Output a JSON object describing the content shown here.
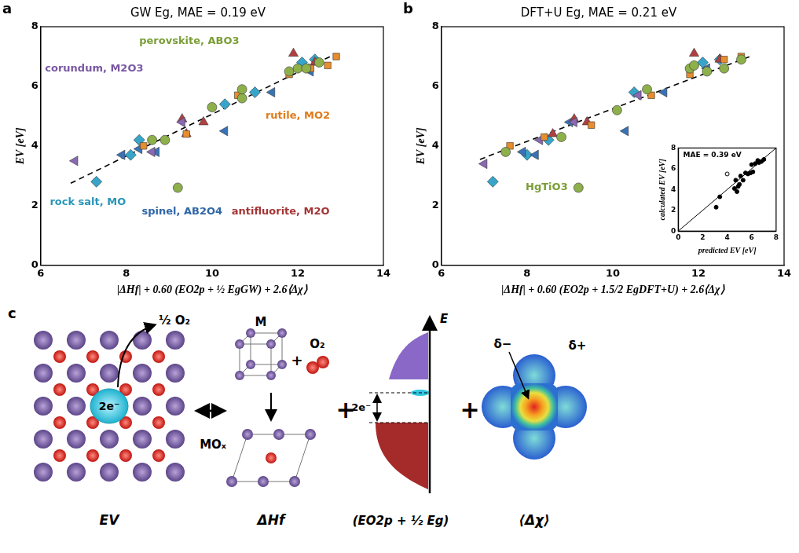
{
  "chart_data": [
    {
      "letter": "a",
      "type": "scatter",
      "title": "GW Eg, MAE = 0.19 eV",
      "x_label": "|ΔHf| + 0.60 (EO2p + ½ EgGW) + 2.6⟨Δχ⟩",
      "y_label": "EV [eV]",
      "xlim": [
        6,
        14
      ],
      "xticks": [
        6,
        8,
        10,
        12,
        14
      ],
      "ylim": [
        0,
        8
      ],
      "yticks": [
        0,
        2,
        4,
        6,
        8
      ],
      "grid": false,
      "legend": false,
      "series": [
        {
          "color": "#8db04a",
          "marker": "circle",
          "x": [
            8.6,
            8.9,
            9.2,
            10.0,
            10.7,
            10.7,
            11.8,
            12.0,
            12.2,
            12.5
          ],
          "y": [
            4.2,
            4.2,
            2.6,
            5.3,
            5.6,
            5.9,
            6.5,
            6.6,
            6.6,
            6.8
          ]
        },
        {
          "color": "#e88d2d",
          "marker": "square",
          "x": [
            8.4,
            9.4,
            10.6,
            11.8,
            12.3,
            12.7,
            12.9
          ],
          "y": [
            4.0,
            4.4,
            5.7,
            6.4,
            6.6,
            6.7,
            7.0
          ]
        },
        {
          "color": "#8a68b3",
          "marker": "triangle-left",
          "x": [
            6.8,
            8.6,
            9.3,
            12.2
          ],
          "y": [
            3.5,
            3.8,
            4.8,
            6.6
          ]
        },
        {
          "color": "#b23f3f",
          "marker": "triangle-up",
          "x": [
            9.3,
            9.4,
            9.8,
            11.9,
            12.4
          ],
          "y": [
            4.9,
            4.4,
            4.8,
            7.1,
            6.8
          ]
        },
        {
          "color": "#3873b8",
          "marker": "triangle-left",
          "x": [
            7.9,
            8.3,
            8.7,
            10.3,
            11.4,
            12.3
          ],
          "y": [
            3.7,
            3.9,
            3.8,
            4.5,
            5.8,
            6.5
          ]
        },
        {
          "color": "#36a5c9",
          "marker": "diamond",
          "x": [
            7.3,
            8.1,
            8.3,
            10.3,
            11.0,
            12.1,
            12.4
          ],
          "y": [
            2.8,
            3.7,
            4.2,
            5.4,
            5.8,
            6.8,
            6.9
          ]
        },
        {
          "type": "line",
          "line_style": "dashed",
          "color": "#000000",
          "x": [
            6.7,
            12.9
          ],
          "y": [
            2.75,
            7.1
          ]
        }
      ],
      "annotations": [
        {
          "text": "perovskite, ABO3",
          "color": "#7a9e36"
        },
        {
          "text": "rutile, MO2",
          "color": "#e07b1a"
        },
        {
          "text": "corundum, M2O3",
          "color": "#7a58a3"
        },
        {
          "text": "antifluorite, M2O",
          "color": "#a33535"
        },
        {
          "text": "spinel, AB2O4",
          "color": "#2f66a8"
        },
        {
          "text": "rock salt, MO",
          "color": "#2a95b8"
        }
      ]
    },
    {
      "letter": "b",
      "type": "scatter",
      "title": "DFT+U Eg, MAE = 0.21 eV",
      "x_label": "|ΔHf| + 0.60 (EO2p + 1.5/2 EgDFT+U) + 2.6⟨Δχ⟩",
      "y_label": "EV [eV]",
      "xlim": [
        6,
        14
      ],
      "xticks": [
        6,
        8,
        10,
        12,
        14
      ],
      "ylim": [
        0,
        8
      ],
      "yticks": [
        0,
        2,
        4,
        6,
        8
      ],
      "grid": false,
      "legend": false,
      "series": [
        {
          "color": "#8db04a",
          "marker": "circle",
          "x": [
            7.5,
            8.8,
            9.2,
            10.1,
            10.8,
            11.8,
            11.9,
            12.2,
            12.6,
            13.0
          ],
          "y": [
            3.8,
            4.3,
            2.6,
            5.2,
            5.9,
            6.6,
            6.7,
            6.5,
            6.6,
            6.9
          ]
        },
        {
          "color": "#e88d2d",
          "marker": "square",
          "x": [
            7.6,
            8.4,
            9.5,
            10.9,
            11.8,
            12.6,
            13.0
          ],
          "y": [
            4.0,
            4.3,
            4.7,
            5.7,
            6.4,
            6.9,
            7.0
          ]
        },
        {
          "color": "#8a68b3",
          "marker": "triangle-left",
          "x": [
            7.0,
            8.3,
            9.1,
            10.6
          ],
          "y": [
            3.4,
            4.2,
            4.8,
            5.7
          ]
        },
        {
          "color": "#b23f3f",
          "marker": "triangle-up",
          "x": [
            8.6,
            9.1,
            9.4,
            11.9,
            12.5
          ],
          "y": [
            4.4,
            4.9,
            4.8,
            7.1,
            6.9
          ]
        },
        {
          "color": "#3873b8",
          "marker": "triangle-left",
          "x": [
            7.9,
            8.2,
            9.0,
            10.3,
            11.2,
            12.2
          ],
          "y": [
            3.8,
            3.7,
            4.8,
            4.5,
            5.8,
            6.6
          ]
        },
        {
          "color": "#36a5c9",
          "marker": "diamond",
          "x": [
            7.2,
            8.0,
            8.5,
            10.5,
            12.1,
            12.5
          ],
          "y": [
            2.8,
            3.7,
            4.2,
            5.8,
            6.8,
            6.9
          ]
        },
        {
          "type": "line",
          "line_style": "dashed",
          "color": "#000000",
          "x": [
            6.9,
            13.2
          ],
          "y": [
            3.55,
            7.0
          ]
        }
      ],
      "annotations": [
        {
          "text": "HgTiO3",
          "color": "#7a9e36"
        }
      ]
    },
    {
      "type": "scatter",
      "x_label": "predicted EV [eV]",
      "y_label": "calculated EV [eV]",
      "xlim": [
        0,
        8
      ],
      "xticks": [
        0,
        2,
        4,
        6,
        8
      ],
      "ylim": [
        0,
        8
      ],
      "yticks": [
        0,
        2,
        4,
        6,
        8
      ],
      "grid": false,
      "legend": false,
      "series": [
        {
          "color": "#000000",
          "marker": "circle",
          "x": [
            3.1,
            3.4,
            4.6,
            4.7,
            4.8,
            4.9,
            5.0,
            5.1,
            5.3,
            5.5,
            5.7,
            5.9,
            6.0,
            6.1,
            6.3,
            6.5,
            6.6,
            6.8,
            7.0
          ],
          "y": [
            2.3,
            3.3,
            4.1,
            4.9,
            3.8,
            4.3,
            4.5,
            5.3,
            4.9,
            5.6,
            5.5,
            5.6,
            6.4,
            5.7,
            6.5,
            6.8,
            6.6,
            6.7,
            6.9
          ]
        },
        {
          "color": "#000000",
          "marker": "open_circle",
          "x": [
            4.0
          ],
          "y": [
            5.5
          ]
        },
        {
          "type": "line",
          "line_style": "solid",
          "color": "#000000",
          "x": [
            0,
            8
          ],
          "y": [
            0,
            8
          ]
        }
      ],
      "annotations": [
        {
          "text": "MAE = 0.39 eV",
          "color": "#000000"
        }
      ]
    }
  ],
  "diagram": {
    "letter": "c",
    "operators": [
      "+",
      "+"
    ],
    "vacancy": {
      "released": "½ O₂",
      "electrons": "2e⁻",
      "label": "EV"
    },
    "formation": {
      "metal": "M",
      "oxygen": "O₂",
      "plus": "+",
      "oxide": "MOₓ",
      "label": "ΔHf"
    },
    "bands": {
      "axis": "E",
      "electrons": "2e⁻",
      "label": "(EO2p + ½ Eg)"
    },
    "electronegativity": {
      "negative": "δ−",
      "positive": "δ+",
      "label": "⟨Δχ⟩"
    }
  }
}
